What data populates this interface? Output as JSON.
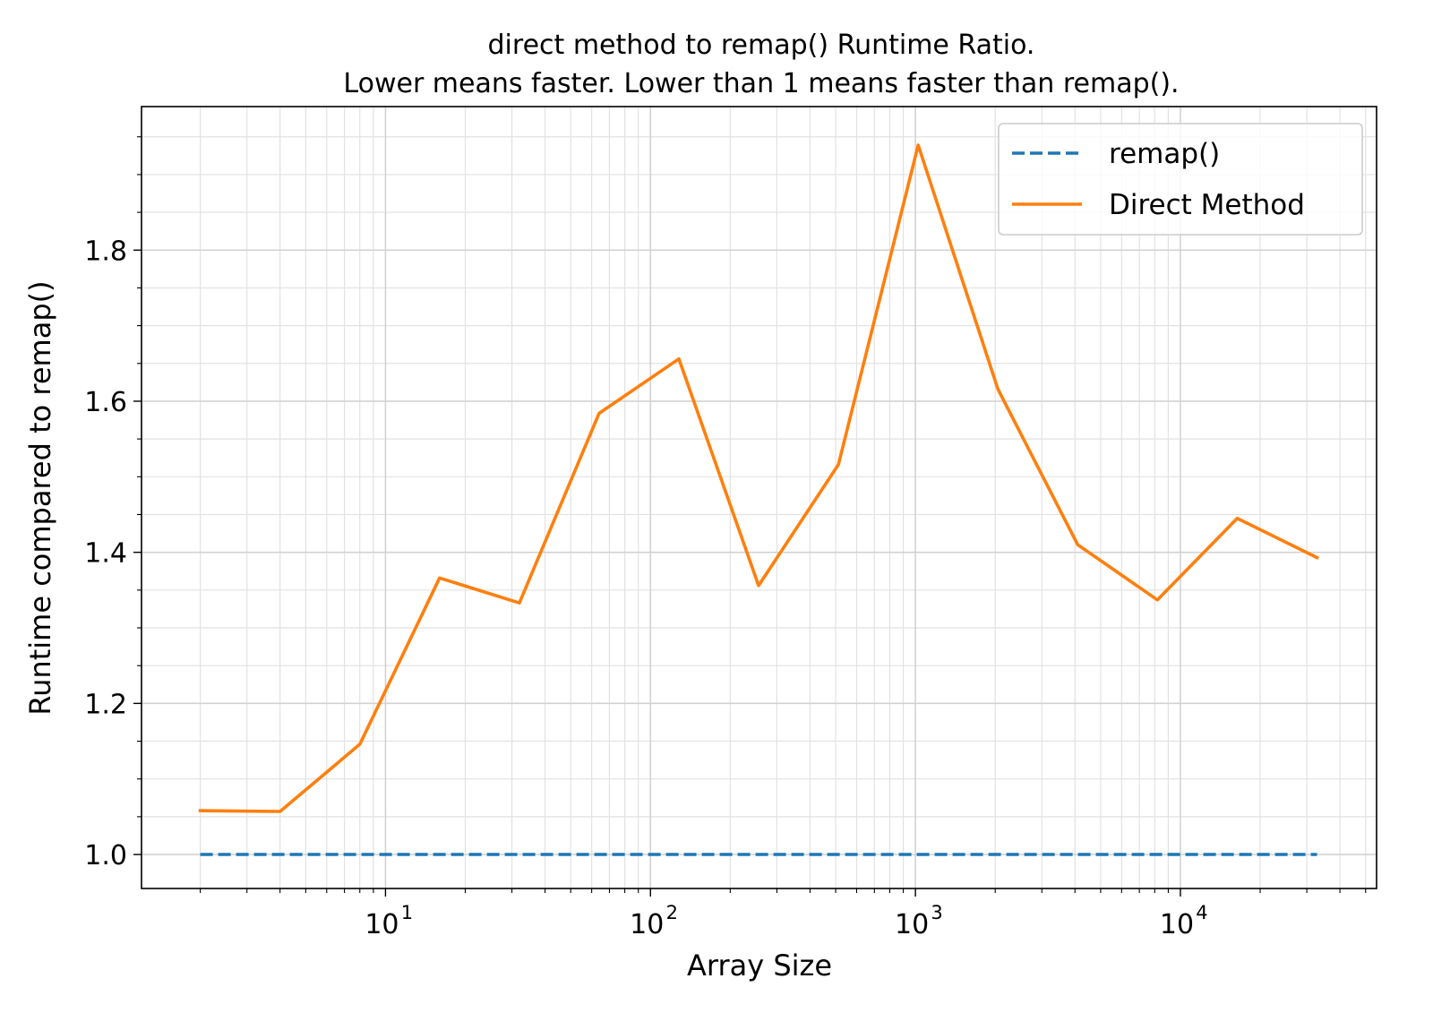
{
  "chart_data": {
    "type": "line",
    "title_lines": [
      "direct method to remap() Runtime Ratio.",
      "Lower means faster. Lower than 1 means faster than remap()."
    ],
    "xlabel": "Array Size",
    "ylabel": "Runtime compared to remap()",
    "xscale": "log",
    "xlim": [
      1.2,
      55000
    ],
    "ylim": [
      0.955,
      1.99
    ],
    "x_ticks": [
      {
        "value": 10,
        "base": "10",
        "exp": "1"
      },
      {
        "value": 100,
        "base": "10",
        "exp": "2"
      },
      {
        "value": 1000,
        "base": "10",
        "exp": "3"
      },
      {
        "value": 10000,
        "base": "10",
        "exp": "4"
      }
    ],
    "y_ticks": [
      {
        "value": 1.0,
        "label": "1.0"
      },
      {
        "value": 1.2,
        "label": "1.2"
      },
      {
        "value": 1.4,
        "label": "1.4"
      },
      {
        "value": 1.6,
        "label": "1.6"
      },
      {
        "value": 1.8,
        "label": "1.8"
      }
    ],
    "y_minor_step": 0.05,
    "grid": "both (major and minor)",
    "legend_position": "top-right",
    "x": [
      2,
      4,
      8,
      16,
      32,
      64,
      128,
      256,
      512,
      1024,
      2048,
      4096,
      8192,
      16384,
      32768
    ],
    "series": [
      {
        "name": "remap()",
        "style": "dashed",
        "color": "#1f77b4",
        "values": [
          1,
          1,
          1,
          1,
          1,
          1,
          1,
          1,
          1,
          1,
          1,
          1,
          1,
          1,
          1
        ]
      },
      {
        "name": "Direct Method",
        "style": "solid",
        "color": "#ff7f0e",
        "values": [
          1.058,
          1.057,
          1.146,
          1.366,
          1.333,
          1.584,
          1.656,
          1.356,
          1.516,
          1.939,
          1.616,
          1.41,
          1.337,
          1.445,
          1.393
        ]
      }
    ]
  }
}
